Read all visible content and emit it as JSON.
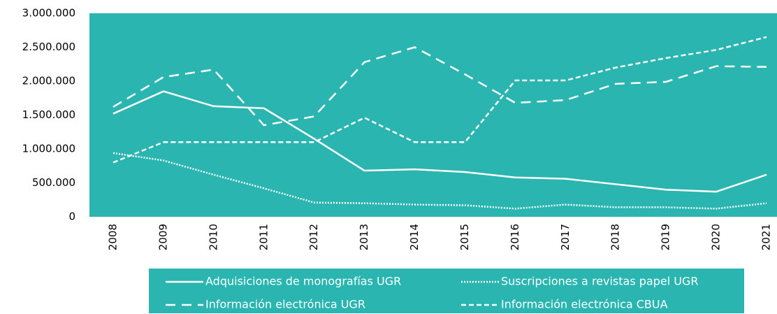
{
  "chart_data": {
    "type": "line",
    "categories": [
      "2008",
      "2009",
      "2010",
      "2011",
      "2012",
      "2013",
      "2014",
      "2015",
      "2016",
      "2017",
      "2018",
      "2019",
      "2020",
      "2021"
    ],
    "series": [
      {
        "name": "Adquisiciones de monografías UGR",
        "color": "#ffffff",
        "dash": "solid",
        "values": [
          1520000,
          1850000,
          1630000,
          1600000,
          1150000,
          680000,
          700000,
          660000,
          580000,
          560000,
          480000,
          400000,
          370000,
          620000
        ]
      },
      {
        "name": "Suscripciones a revistas  papel UGR",
        "color": "#ffffff",
        "dash": "dotted",
        "values": [
          940000,
          830000,
          620000,
          420000,
          210000,
          200000,
          180000,
          170000,
          120000,
          180000,
          140000,
          140000,
          120000,
          200000
        ]
      },
      {
        "name": "Información electrónica UGR",
        "color": "#ffffff",
        "dash": "long-dash",
        "values": [
          1620000,
          2060000,
          2170000,
          1350000,
          1480000,
          2280000,
          2500000,
          2100000,
          1680000,
          1720000,
          1960000,
          1990000,
          2220000,
          2210000
        ]
      },
      {
        "name": "Información electrónica CBUA",
        "color": "#ffffff",
        "dash": "short-dash",
        "values": [
          800000,
          1100000,
          1100000,
          1100000,
          1100000,
          1460000,
          1100000,
          1100000,
          2010000,
          2010000,
          2200000,
          2340000,
          2460000,
          2650000
        ]
      }
    ],
    "ylim": [
      0,
      3000000
    ],
    "yticks": [
      0,
      {
        "value": 500000,
        "label": "500.000"
      },
      {
        "value": 1000000,
        "label": "1.000.000"
      },
      {
        "value": 1500000,
        "label": "1.500.000"
      },
      {
        "value": 2000000,
        "label": "2.000.000"
      },
      {
        "value": 2500000,
        "label": "2.500.000"
      },
      {
        "value": 3000000,
        "label": "3.000.000"
      }
    ],
    "grid": false,
    "legend": "bottom",
    "background": "#2ab5b1"
  }
}
